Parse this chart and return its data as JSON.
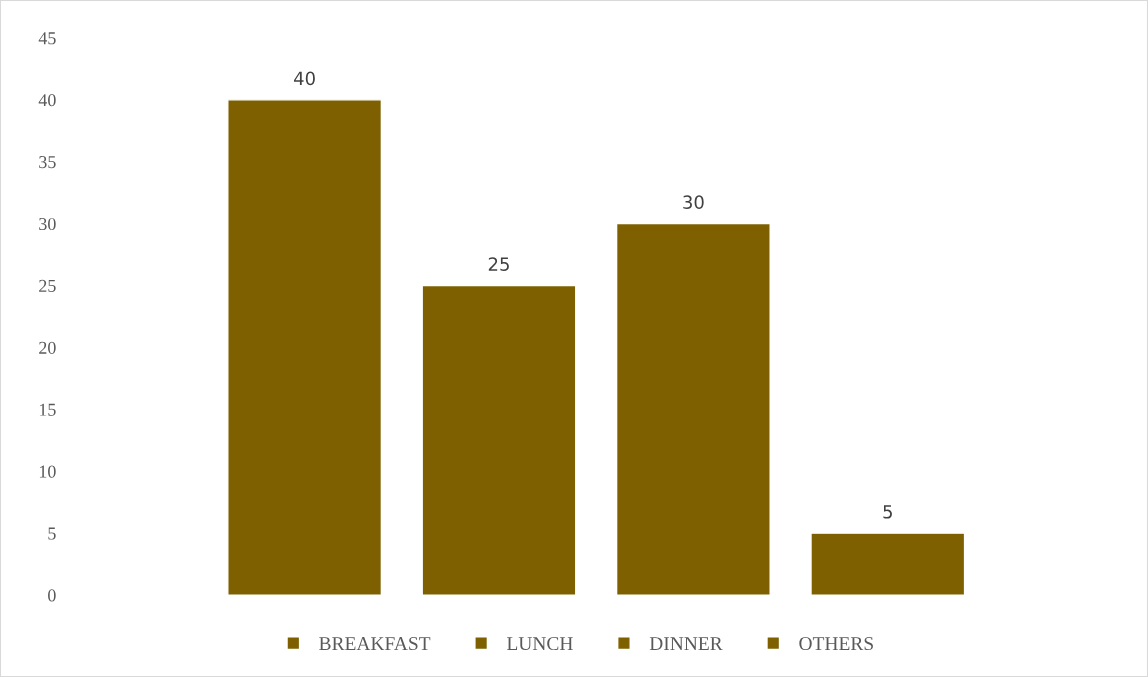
{
  "chart_data": {
    "type": "bar",
    "categories": [
      null
    ],
    "series": [
      {
        "name": "BREAKFAST",
        "color": "#7f6000",
        "values": [
          40
        ]
      },
      {
        "name": "LUNCH",
        "color": "#7f6000",
        "values": [
          25
        ]
      },
      {
        "name": "DINNER",
        "color": "#7f6000",
        "values": [
          30
        ]
      },
      {
        "name": "OTHERS",
        "color": "#7f6000",
        "values": [
          5
        ]
      }
    ],
    "ylim": [
      0,
      45
    ],
    "yticks": [
      0,
      5,
      10,
      15,
      20,
      25,
      30,
      35,
      40,
      45
    ],
    "data_labels": true,
    "grid": false,
    "legend": "bottom",
    "tick_labels": "y"
  }
}
